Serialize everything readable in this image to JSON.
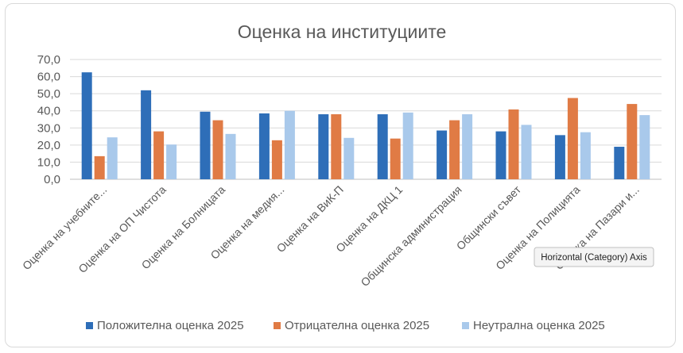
{
  "chart_data": {
    "type": "bar",
    "title": "Оценка на институциите",
    "categories": [
      "Оценка на учебните...",
      "Оценка на ОП Чистота",
      "Оценка на Болницата",
      "Оценка на медия...",
      "Оценка на ВиК-П",
      "Оценка на ДКЦ 1",
      "Общинска администрация",
      "Общински съвет",
      "Оценка на Полицията",
      "Оценка на Пазари и..."
    ],
    "series": [
      {
        "name": "Положителна оценка 2025",
        "color": "#2E6EB8",
        "values": [
          62.5,
          52.0,
          39.5,
          38.5,
          38.0,
          38.0,
          28.5,
          28.0,
          25.8,
          19.0
        ]
      },
      {
        "name": "Отрицателна оценка 2025",
        "color": "#E07B45",
        "values": [
          13.5,
          28.0,
          34.5,
          22.8,
          38.0,
          23.8,
          34.5,
          40.8,
          47.5,
          44.0
        ]
      },
      {
        "name": "Неутрална оценка 2025",
        "color": "#A9C9EB",
        "values": [
          24.5,
          20.3,
          26.5,
          40.0,
          24.2,
          39.0,
          38.0,
          31.8,
          27.5,
          37.5
        ]
      }
    ],
    "yticks": [
      "0,0",
      "10,0",
      "20,0",
      "30,0",
      "40,0",
      "50,0",
      "60,0",
      "70,0"
    ],
    "ylim": [
      0,
      70
    ],
    "grid": true,
    "legend_position": "bottom"
  },
  "tooltip": {
    "text": "Horizontal (Category) Axis"
  }
}
